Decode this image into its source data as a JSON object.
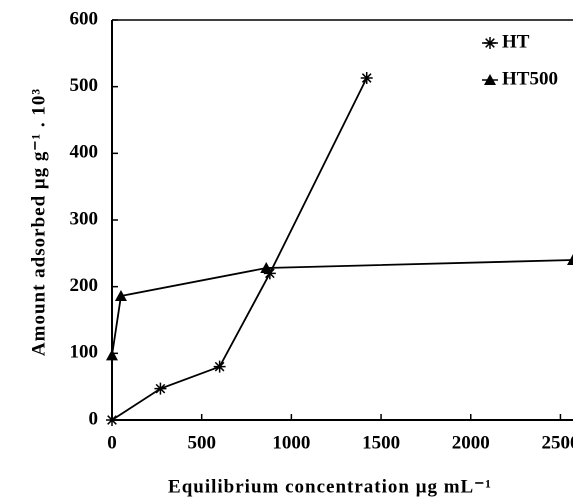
{
  "chart_data": {
    "type": "line",
    "xlabel": "Equilibrium concentration μg mL⁻¹",
    "ylabel": "Amount adsorbed μg g⁻¹ . 10³",
    "xlim": [
      0,
      2570
    ],
    "ylim": [
      0,
      600
    ],
    "xticks": [
      0,
      500,
      1000,
      1500,
      2000,
      2500
    ],
    "yticks": [
      0,
      100,
      200,
      300,
      400,
      500,
      600
    ],
    "legend": "upper right",
    "series": [
      {
        "name": "HT",
        "color": "#000000",
        "marker": "asterisk",
        "x": [
          0,
          270,
          600,
          880,
          1420
        ],
        "values": [
          0,
          47,
          80,
          220,
          513
        ]
      },
      {
        "name": "HT500",
        "color": "#000000",
        "marker": "triangle",
        "x": [
          0,
          50,
          860,
          2570
        ],
        "values": [
          97,
          186,
          228,
          240
        ]
      }
    ]
  }
}
